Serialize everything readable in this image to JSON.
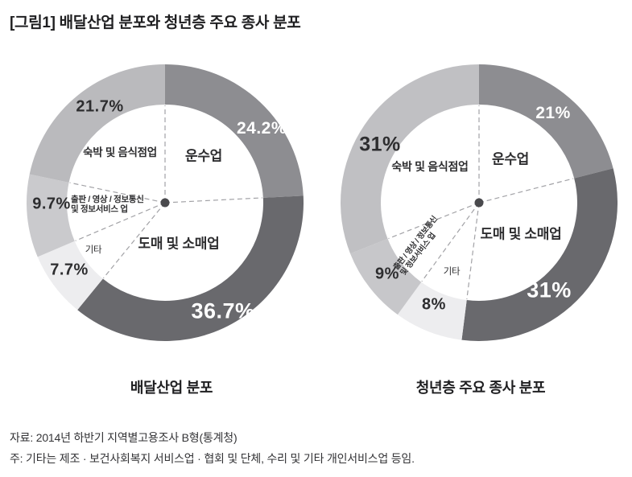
{
  "title": "[그림1] 배달산업 분포와 청년층 주요 종사 분포",
  "footer": {
    "source": "자료: 2014년 하반기 지역별고용조사 B형(통계청)",
    "note": "주: 기타는 제조 · 보건사회복지 서비스업 · 협회 및 단체, 수리 및 기타 개인서비스업 등임."
  },
  "chulpan_label_lines": [
    "출판 / 영상 / 정보통신",
    "및 정보서비스 업"
  ],
  "style": {
    "dash_line_color": "#a2a2a6",
    "center_dot_color": "#4a4a4d",
    "dark_label_color": "#2d2d2f",
    "light_label_color": "#ffffff"
  },
  "chart_data": [
    {
      "type": "pie",
      "donut": true,
      "title": "배달산업 분포",
      "unit": "%",
      "start_angle": "12-oclock",
      "direction": "clockwise",
      "categories": [
        "운수업",
        "도매 및 소매업",
        "기타",
        "출판 / 영상 / 정보통신 및 정보서비스 업",
        "숙박 및 음식점업"
      ],
      "values": [
        24.2,
        36.7,
        7.7,
        9.7,
        21.7
      ],
      "value_labels": [
        "24.2%",
        "36.7%",
        "7.7%",
        "9.7%",
        "21.7%"
      ],
      "colors": [
        "#8d8d91",
        "#69696d",
        "#ededef",
        "#cacacd",
        "#bababd"
      ]
    },
    {
      "type": "pie",
      "donut": true,
      "title": "청년층 주요 종사 분포",
      "unit": "%",
      "start_angle": "12-oclock",
      "direction": "clockwise",
      "categories": [
        "운수업",
        "도매 및 소매업",
        "기타",
        "출판 / 영상 / 정보통신 및 정보서비스 업",
        "숙박 및 음식점업"
      ],
      "values": [
        21,
        31,
        8,
        9,
        31
      ],
      "value_labels": [
        "21%",
        "31%",
        "8%",
        "9%",
        "31%"
      ],
      "colors": [
        "#8d8d91",
        "#69696d",
        "#ededef",
        "#c7c7ca",
        "#c0c0c3"
      ]
    }
  ]
}
